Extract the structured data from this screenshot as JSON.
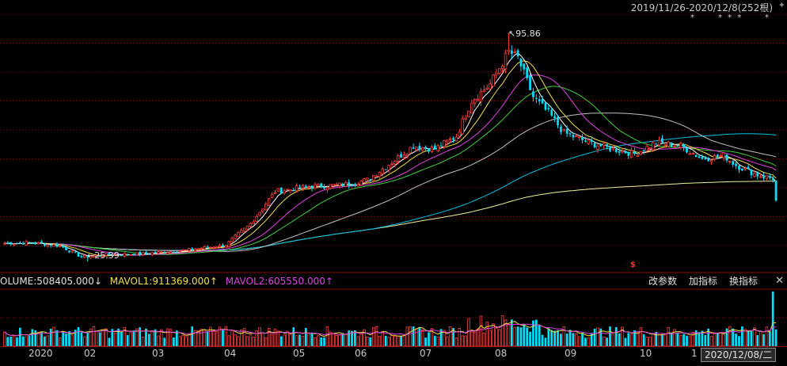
{
  "header": {
    "range": "2019/11/26-2020/12/8(252根)",
    "markers": [
      "*",
      "* * *",
      "*"
    ]
  },
  "price_panel": {
    "max_label": "↖95.86",
    "min_label": "←25.39",
    "dollar_mark": "$"
  },
  "volume_panel": {
    "volume_text": "OLUME:508405.000↓",
    "mavol1_text": "MAVOL1:911369.000↑",
    "mavol2_text": "MAVOL2:605550.000↑"
  },
  "toolbar": {
    "modify_params": "改参数",
    "add_indicator": "加指标",
    "switch_indicator": "换指标",
    "close": "✕"
  },
  "cursor_date": "2020/12/08/二",
  "x_axis": {
    "months": [
      "2020",
      "02",
      "03",
      "04",
      "05",
      "06",
      "07",
      "08",
      "09",
      "10",
      "1"
    ]
  },
  "colors": {
    "up": "#ff3c3c",
    "down": "#00e0ff",
    "ma5": "#ffffff",
    "ma10": "#f0e040",
    "ma20": "#e040e0",
    "ma30": "#40d040",
    "ma60": "#c0c0c0",
    "ma120": "#00c0e0",
    "ma250": "#f0f0a0",
    "grid": "#7a0000"
  },
  "chart_data": {
    "type": "candlestick",
    "count": 252,
    "ylim": [
      23.0,
      102.0
    ],
    "max_price": 95.86,
    "min_price": 25.39,
    "anchors": [
      [
        0,
        31.0
      ],
      [
        8,
        31.2
      ],
      [
        18,
        30.2
      ],
      [
        25,
        26.8
      ],
      [
        33,
        27.5
      ],
      [
        45,
        27.8
      ],
      [
        60,
        29.0
      ],
      [
        72,
        30.5
      ],
      [
        80,
        37.0
      ],
      [
        88,
        47.0
      ],
      [
        100,
        48.5
      ],
      [
        110,
        49.0
      ],
      [
        118,
        50.5
      ],
      [
        126,
        56.0
      ],
      [
        133,
        61.0
      ],
      [
        140,
        60.0
      ],
      [
        147,
        64.0
      ],
      [
        152,
        75.0
      ],
      [
        158,
        80.0
      ],
      [
        164,
        90.0
      ],
      [
        167,
        88.0
      ],
      [
        172,
        76.0
      ],
      [
        178,
        70.0
      ],
      [
        182,
        65.0
      ],
      [
        190,
        62.0
      ],
      [
        198,
        60.0
      ],
      [
        205,
        58.5
      ],
      [
        212,
        62.0
      ],
      [
        220,
        61.0
      ],
      [
        227,
        57.0
      ],
      [
        234,
        58.0
      ],
      [
        238,
        55.0
      ],
      [
        245,
        52.0
      ],
      [
        250,
        51.0
      ],
      [
        251,
        44.0
      ]
    ],
    "volume_ylim": [
      0,
      1700000
    ],
    "last_volume": 508405,
    "mavol1": 911369,
    "mavol2": 605550
  }
}
